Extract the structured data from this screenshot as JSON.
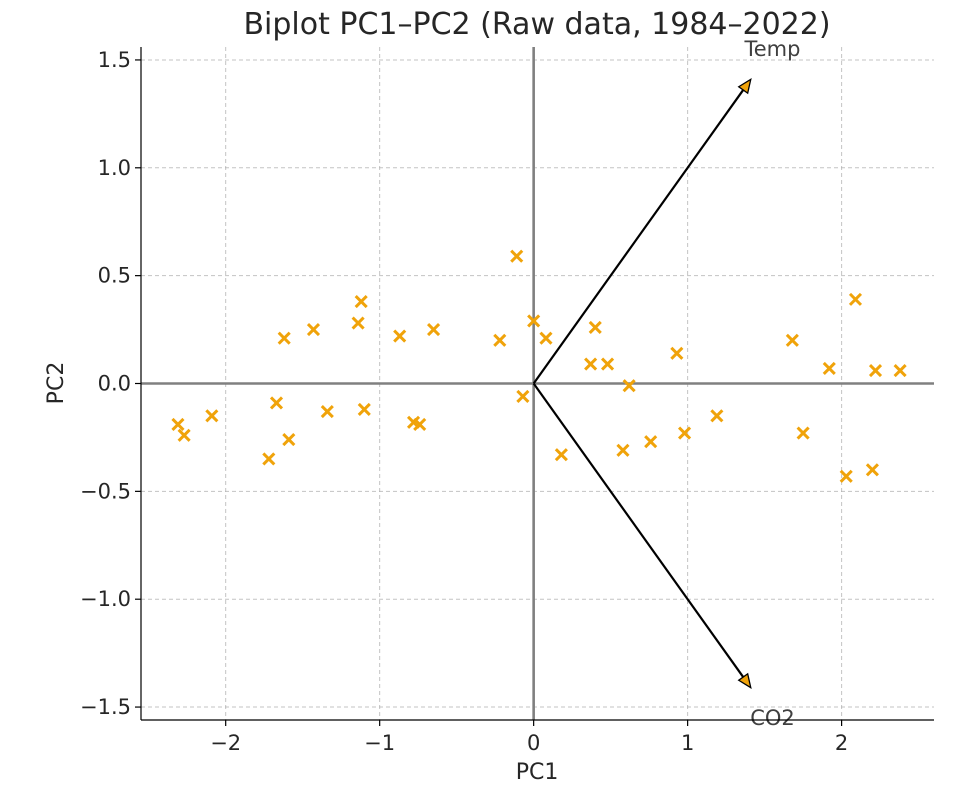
{
  "chart_data": {
    "type": "scatter",
    "title": "Biplot PC1–PC2 (Raw data, 1984–2022)",
    "xlabel": "PC1",
    "ylabel": "PC2",
    "xlim": [
      -2.55,
      2.6
    ],
    "ylim": [
      -1.56,
      1.56
    ],
    "xticks": [
      -2,
      -1,
      0,
      1,
      2
    ],
    "xtick_labels": [
      "−2",
      "−1",
      "0",
      "1",
      "2"
    ],
    "yticks": [
      -1.5,
      -1.0,
      -0.5,
      0.0,
      0.5,
      1.0,
      1.5
    ],
    "ytick_labels": [
      "−1.5",
      "−1.0",
      "−0.5",
      "0.0",
      "0.5",
      "1.0",
      "1.5"
    ],
    "grid": true,
    "marker": "x",
    "point_color": "#f0a30a",
    "zero_line_color": "#808080",
    "arrow_color": "#000000",
    "arrow_head_color": "#f0a30a",
    "points": [
      {
        "x": -2.31,
        "y": -0.19
      },
      {
        "x": -2.27,
        "y": -0.24
      },
      {
        "x": -2.09,
        "y": -0.15
      },
      {
        "x": -1.72,
        "y": -0.35
      },
      {
        "x": -1.67,
        "y": -0.09
      },
      {
        "x": -1.62,
        "y": 0.21
      },
      {
        "x": -1.59,
        "y": -0.26
      },
      {
        "x": -1.43,
        "y": 0.25
      },
      {
        "x": -1.34,
        "y": -0.13
      },
      {
        "x": -1.14,
        "y": 0.28
      },
      {
        "x": -1.12,
        "y": 0.38
      },
      {
        "x": -1.1,
        "y": -0.12
      },
      {
        "x": -0.87,
        "y": 0.22
      },
      {
        "x": -0.78,
        "y": -0.18
      },
      {
        "x": -0.74,
        "y": -0.19
      },
      {
        "x": -0.65,
        "y": 0.25
      },
      {
        "x": -0.22,
        "y": 0.2
      },
      {
        "x": -0.11,
        "y": 0.59
      },
      {
        "x": -0.07,
        "y": -0.06
      },
      {
        "x": 0.0,
        "y": 0.29
      },
      {
        "x": 0.08,
        "y": 0.21
      },
      {
        "x": 0.18,
        "y": -0.33
      },
      {
        "x": 0.37,
        "y": 0.09
      },
      {
        "x": 0.4,
        "y": 0.26
      },
      {
        "x": 0.48,
        "y": 0.09
      },
      {
        "x": 0.58,
        "y": -0.31
      },
      {
        "x": 0.62,
        "y": -0.01
      },
      {
        "x": 0.76,
        "y": -0.27
      },
      {
        "x": 0.93,
        "y": 0.14
      },
      {
        "x": 0.98,
        "y": -0.23
      },
      {
        "x": 1.19,
        "y": -0.15
      },
      {
        "x": 1.68,
        "y": 0.2
      },
      {
        "x": 1.75,
        "y": -0.23
      },
      {
        "x": 1.92,
        "y": 0.07
      },
      {
        "x": 2.03,
        "y": -0.43
      },
      {
        "x": 2.09,
        "y": 0.39
      },
      {
        "x": 2.2,
        "y": -0.4
      },
      {
        "x": 2.22,
        "y": 0.06
      },
      {
        "x": 2.38,
        "y": 0.06
      }
    ],
    "loadings": [
      {
        "name": "Temp",
        "x": 1.41,
        "y": 1.41
      },
      {
        "name": "CO2",
        "x": 1.41,
        "y": -1.41
      }
    ]
  }
}
